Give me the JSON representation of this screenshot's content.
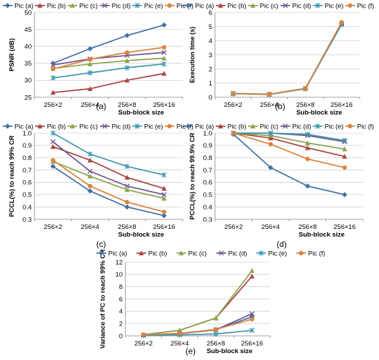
{
  "colors": {
    "Pic (a)": "#4572A7",
    "Pic (b)": "#AA4643",
    "Pic (c)": "#89A54E",
    "Pic (d)": "#71588F",
    "Pic (e)": "#4198AF",
    "Pic (f)": "#DB843D"
  },
  "chart_data": [
    {
      "type": "line",
      "panel_label": "(a)",
      "xlabel": "Sub-block size",
      "ylabel": "PSNR (dB)",
      "categories": [
        "256×2",
        "256×4",
        "256×8",
        "256×16"
      ],
      "ylim": [
        25,
        50
      ],
      "ystep": 5,
      "ytick_decimals": 0,
      "grid": true,
      "legend": "top",
      "series": [
        {
          "name": "Pic (a)",
          "marker": "diamond",
          "values": [
            35.0,
            39.3,
            43.2,
            46.3
          ]
        },
        {
          "name": "Pic (b)",
          "marker": "triangle",
          "values": [
            26.4,
            27.5,
            30.0,
            32.0
          ]
        },
        {
          "name": "Pic (c)",
          "marker": "triangle",
          "values": [
            33.5,
            34.8,
            35.8,
            36.5
          ]
        },
        {
          "name": "Pic (d)",
          "marker": "x",
          "values": [
            34.5,
            36.3,
            37.3,
            38.2
          ]
        },
        {
          "name": "Pic (e)",
          "marker": "star",
          "values": [
            30.7,
            32.2,
            33.7,
            34.8
          ]
        },
        {
          "name": "Pic (f)",
          "marker": "circle",
          "values": [
            33.3,
            36.2,
            38.2,
            39.7
          ]
        }
      ]
    },
    {
      "type": "line",
      "panel_label": "(b)",
      "xlabel": "Sub-block size",
      "ylabel": "Execution time (s)",
      "categories": [
        "256×2",
        "256×4",
        "256×8",
        "256×16"
      ],
      "ylim": [
        0,
        6
      ],
      "ystep": 1,
      "ytick_decimals": 0,
      "grid": true,
      "legend": "top",
      "series": [
        {
          "name": "Pic (a)",
          "marker": "diamond",
          "values": [
            0.25,
            0.2,
            0.6,
            5.2
          ]
        },
        {
          "name": "Pic (b)",
          "marker": "triangle",
          "values": [
            0.26,
            0.21,
            0.62,
            5.25
          ]
        },
        {
          "name": "Pic (c)",
          "marker": "triangle",
          "values": [
            0.25,
            0.2,
            0.61,
            5.2
          ]
        },
        {
          "name": "Pic (d)",
          "marker": "x",
          "values": [
            0.26,
            0.21,
            0.62,
            5.22
          ]
        },
        {
          "name": "Pic (e)",
          "marker": "star",
          "values": [
            0.25,
            0.2,
            0.6,
            5.15
          ]
        },
        {
          "name": "Pic (f)",
          "marker": "circle",
          "values": [
            0.27,
            0.22,
            0.63,
            5.3
          ]
        }
      ]
    },
    {
      "type": "line",
      "panel_label": "(c)",
      "xlabel": "Sub-block size",
      "ylabel": "PCCL(%) to reach 99% CR",
      "categories": [
        "256×2",
        "256×4",
        "256×8",
        "256×16"
      ],
      "ylim": [
        0.3,
        1.0
      ],
      "ystep": 0.1,
      "ytick_decimals": 1,
      "grid": true,
      "legend": "top",
      "series": [
        {
          "name": "Pic (a)",
          "marker": "diamond",
          "values": [
            0.73,
            0.53,
            0.4,
            0.33
          ]
        },
        {
          "name": "Pic (b)",
          "marker": "triangle",
          "values": [
            0.89,
            0.78,
            0.64,
            0.55
          ]
        },
        {
          "name": "Pic (c)",
          "marker": "triangle",
          "values": [
            0.77,
            0.65,
            0.54,
            0.47
          ]
        },
        {
          "name": "Pic (d)",
          "marker": "x",
          "values": [
            0.93,
            0.69,
            0.57,
            0.5
          ]
        },
        {
          "name": "Pic (e)",
          "marker": "star",
          "values": [
            1.0,
            0.83,
            0.73,
            0.66
          ]
        },
        {
          "name": "Pic (f)",
          "marker": "circle",
          "values": [
            0.78,
            0.57,
            0.44,
            0.36
          ]
        }
      ]
    },
    {
      "type": "line",
      "panel_label": "(d)",
      "xlabel": "Sub-block size",
      "ylabel": "PCCL(%) to reach 99.9% CR",
      "categories": [
        "256×2",
        "256×4",
        "256×8",
        "256×16"
      ],
      "ylim": [
        0.3,
        1.0
      ],
      "ystep": 0.1,
      "ytick_decimals": 1,
      "grid": true,
      "legend": "top",
      "series": [
        {
          "name": "Pic (a)",
          "marker": "diamond",
          "values": [
            0.99,
            0.72,
            0.57,
            0.5
          ]
        },
        {
          "name": "Pic (b)",
          "marker": "triangle",
          "values": [
            1.0,
            0.96,
            0.88,
            0.81
          ]
        },
        {
          "name": "Pic (c)",
          "marker": "triangle",
          "values": [
            1.0,
            0.98,
            0.92,
            0.87
          ]
        },
        {
          "name": "Pic (d)",
          "marker": "x",
          "values": [
            1.0,
            1.0,
            0.98,
            0.93
          ]
        },
        {
          "name": "Pic (e)",
          "marker": "star",
          "values": [
            1.0,
            1.0,
            0.99,
            0.94
          ]
        },
        {
          "name": "Pic (f)",
          "marker": "circle",
          "values": [
            1.0,
            0.91,
            0.79,
            0.72
          ]
        }
      ]
    },
    {
      "type": "line",
      "panel_label": "(e)",
      "xlabel": "Sub-block size",
      "ylabel": "Variance of PC to reach 99% CR",
      "categories": [
        "256×2",
        "256×4",
        "256×8",
        "256×16"
      ],
      "ylim": [
        0,
        12
      ],
      "ystep": 2,
      "ytick_decimals": 0,
      "grid": true,
      "legend": "top",
      "series": [
        {
          "name": "Pic (a)",
          "marker": "diamond",
          "values": [
            0.1,
            0.35,
            1.0,
            3.1
          ]
        },
        {
          "name": "Pic (b)",
          "marker": "triangle",
          "values": [
            0.2,
            0.9,
            2.9,
            9.7
          ]
        },
        {
          "name": "Pic (c)",
          "marker": "triangle",
          "values": [
            0.2,
            0.9,
            2.9,
            10.6
          ]
        },
        {
          "name": "Pic (d)",
          "marker": "x",
          "values": [
            0.1,
            0.35,
            1.0,
            3.6
          ]
        },
        {
          "name": "Pic (e)",
          "marker": "star",
          "values": [
            0.05,
            0.15,
            0.3,
            0.9
          ]
        },
        {
          "name": "Pic (f)",
          "marker": "circle",
          "values": [
            0.2,
            0.4,
            1.05,
            2.7
          ]
        }
      ]
    }
  ]
}
